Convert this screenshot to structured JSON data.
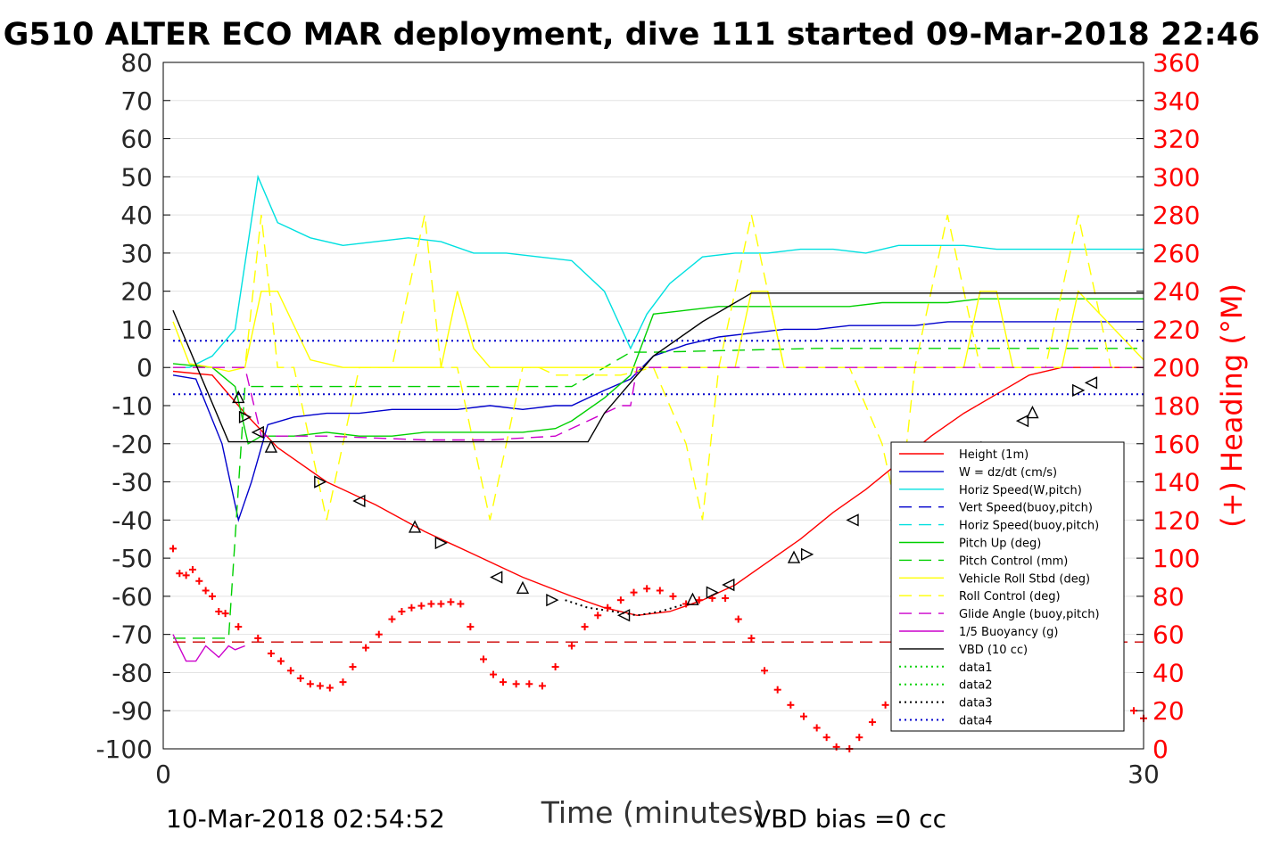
{
  "chart_data": {
    "type": "line",
    "title": "G510 ALTER ECO MAR deployment, dive 111 started 09-Mar-2018 22:46",
    "xlabel": "Time (minutes)",
    "ylabel_right": "(+) Heading (°M)",
    "footer_left": "10-Mar-2018 02:54:52",
    "footer_right": "VBD bias =0 cc",
    "xlim": [
      0,
      30
    ],
    "ylim": [
      -100,
      80
    ],
    "ylim_right": [
      0,
      360
    ],
    "x_ticks": [
      "0",
      "30"
    ],
    "y_ticks": [
      "80",
      "70",
      "60",
      "50",
      "40",
      "30",
      "20",
      "10",
      "0",
      "-10",
      "-20",
      "-30",
      "-40",
      "-50",
      "-60",
      "-70",
      "-80",
      "-90",
      "-100"
    ],
    "y_right_ticks": [
      "360",
      "340",
      "320",
      "300",
      "280",
      "260",
      "240",
      "220",
      "200",
      "180",
      "160",
      "140",
      "120",
      "100",
      "80",
      "60",
      "40",
      "20",
      "0"
    ],
    "grid": true,
    "legend_position": "lower-right",
    "colors": {
      "height": "#ff0000",
      "w": "#0000cc",
      "horiz": "#00e0e0",
      "pitch": "#00d000",
      "roll": "#ffff00",
      "glide": "#cc00cc",
      "vbd": "#000000",
      "heading": "#ff0000"
    },
    "legend": [
      {
        "label": "Height (1m)",
        "color": "#ff0000",
        "style": "solid"
      },
      {
        "label": "W = dz/dt (cm/s)",
        "color": "#0000cc",
        "style": "solid"
      },
      {
        "label": "Horiz Speed(W,pitch)",
        "color": "#00e0e0",
        "style": "solid"
      },
      {
        "label": "Vert Speed(buoy,pitch)",
        "color": "#0000cc",
        "style": "dash"
      },
      {
        "label": "Horiz Speed(buoy,pitch)",
        "color": "#00e0e0",
        "style": "dash"
      },
      {
        "label": "Pitch Up (deg)",
        "color": "#00d000",
        "style": "solid"
      },
      {
        "label": "Pitch Control (mm)",
        "color": "#00d000",
        "style": "dash"
      },
      {
        "label": "Vehicle Roll Stbd (deg)",
        "color": "#ffff00",
        "style": "solid"
      },
      {
        "label": "Roll Control (deg)",
        "color": "#ffff00",
        "style": "dash"
      },
      {
        "label": "Glide Angle (buoy,pitch)",
        "color": "#cc00cc",
        "style": "dash"
      },
      {
        "label": "1/5 Buoyancy (g)",
        "color": "#cc00cc",
        "style": "solid"
      },
      {
        "label": "VBD (10 cc)",
        "color": "#000000",
        "style": "solid"
      },
      {
        "label": "data1",
        "color": "#00d000",
        "style": "dot"
      },
      {
        "label": "data2",
        "color": "#00d000",
        "style": "dot"
      },
      {
        "label": "data3",
        "color": "#000000",
        "style": "dot"
      },
      {
        "label": "data4",
        "color": "#0000cc",
        "style": "dot"
      }
    ],
    "series": [
      {
        "name": "Height (1m)",
        "color": "#ff0000",
        "style": "solid",
        "x": [
          0.3,
          1.5,
          2.5,
          3.5,
          5,
          6.5,
          8,
          9.5,
          11,
          12.5,
          13.5,
          14.5,
          15.5,
          16.5,
          17.5,
          18.5,
          19.5,
          20.5,
          21.5,
          22.5,
          23.5,
          24.5,
          25.5,
          26.5,
          27.5,
          30
        ],
        "y": [
          -1,
          -2,
          -12,
          -21,
          -30,
          -36,
          -43,
          -49,
          -55,
          -60,
          -63,
          -65,
          -64,
          -61,
          -57,
          -51,
          -45,
          -38,
          -32,
          -25,
          -18,
          -12,
          -7,
          -2,
          0,
          0
        ]
      },
      {
        "name": "W = dz/dt (cm/s)",
        "color": "#0000cc",
        "style": "solid",
        "x": [
          0.3,
          1,
          1.8,
          2.3,
          2.7,
          3.2,
          4,
          5,
          6,
          7,
          8,
          9,
          10,
          11,
          12,
          12.5,
          13.5,
          14.3,
          15,
          16,
          17,
          18,
          19,
          20,
          21,
          22,
          23,
          24,
          25,
          26,
          27,
          30
        ],
        "y": [
          -2,
          -3,
          -20,
          -40,
          -30,
          -15,
          -13,
          -12,
          -12,
          -11,
          -11,
          -11,
          -10,
          -11,
          -10,
          -10,
          -6,
          -3,
          3,
          6,
          8,
          9,
          10,
          10,
          11,
          11,
          11,
          12,
          12,
          12,
          12,
          12
        ]
      },
      {
        "name": "Horiz Speed(W,pitch)",
        "color": "#00e0e0",
        "style": "solid",
        "x": [
          0.3,
          0.8,
          1.5,
          2.2,
          2.9,
          3.5,
          4.5,
          5.5,
          6.5,
          7.5,
          8.5,
          9.5,
          10.5,
          11.5,
          12.5,
          13.5,
          14.3,
          14.8,
          15.5,
          16.5,
          17.5,
          18.5,
          19.5,
          20.5,
          21.5,
          22.5,
          23.5,
          24.5,
          25.5,
          26.5,
          27.5,
          30
        ],
        "y": [
          0,
          0,
          3,
          10,
          50,
          38,
          34,
          32,
          33,
          34,
          33,
          30,
          30,
          29,
          28,
          20,
          5,
          14,
          22,
          29,
          30,
          30,
          31,
          31,
          30,
          32,
          32,
          32,
          31,
          31,
          31,
          31
        ]
      },
      {
        "name": "Pitch Up (deg)",
        "color": "#00d000",
        "style": "solid",
        "x": [
          0.3,
          1.5,
          2.2,
          2.6,
          3,
          4,
          5,
          6,
          7,
          8,
          9,
          10,
          11,
          12,
          12.5,
          13.5,
          14.3,
          15,
          16,
          17,
          18,
          19,
          20,
          21,
          22,
          23,
          24,
          25,
          26,
          27,
          30
        ],
        "y": [
          1,
          0,
          -5,
          -20,
          -18,
          -18,
          -17,
          -18,
          -18,
          -17,
          -17,
          -17,
          -17,
          -16,
          -14,
          -8,
          -2,
          14,
          15,
          16,
          16,
          16,
          16,
          16,
          17,
          17,
          17,
          18,
          18,
          18,
          18
        ]
      },
      {
        "name": "Pitch Control (mm)",
        "color": "#00d000",
        "style": "dash",
        "x": [
          0.3,
          2,
          2.5,
          5,
          8,
          10,
          12,
          12.5,
          14.3,
          15,
          20,
          25,
          30
        ],
        "y": [
          -71,
          -71,
          -5,
          -5,
          -5,
          -5,
          -5,
          -5,
          4,
          4,
          5,
          5,
          5
        ]
      },
      {
        "name": "Vehicle Roll Stbd (deg)",
        "color": "#ffff00",
        "style": "solid",
        "x": [
          0.3,
          0.8,
          1.5,
          2,
          2.5,
          3,
          3.5,
          4.5,
          5.5,
          6.5,
          7,
          7.5,
          8,
          8.5,
          9,
          9.5,
          10,
          10.5,
          11.5,
          12.5,
          13.5,
          14.5,
          15.5,
          16.5,
          17.5,
          18,
          18.5,
          19,
          19.5,
          20,
          20.5,
          21,
          21.5,
          22.5,
          23.5,
          24.5,
          25,
          25.5,
          26,
          26.5,
          27,
          27.5,
          28,
          30
        ],
        "y": [
          12,
          1,
          0,
          -1,
          0,
          20,
          20,
          2,
          0,
          0,
          0,
          0,
          0,
          0,
          20,
          5,
          0,
          0,
          0,
          0,
          0,
          0,
          0,
          0,
          0,
          20,
          20,
          0,
          0,
          0,
          0,
          0,
          0,
          0,
          0,
          0,
          20,
          20,
          0,
          0,
          0,
          0,
          20,
          2
        ]
      },
      {
        "name": "Roll Control (deg)",
        "color": "#ffff00",
        "style": "dash",
        "x": [
          0.3,
          2.5,
          3,
          3.5,
          4,
          5,
          6,
          6.5,
          7,
          8,
          8.5,
          9,
          10,
          11,
          11.5,
          12,
          13,
          14,
          15,
          16,
          16.5,
          17,
          18,
          19,
          20,
          21,
          22,
          22.5,
          23,
          24,
          25,
          26,
          27,
          28,
          29,
          30
        ],
        "y": [
          0,
          0,
          40,
          0,
          0,
          -40,
          0,
          0,
          0,
          40,
          0,
          0,
          -40,
          0,
          0,
          -2,
          -2,
          -2,
          0,
          -20,
          -40,
          0,
          40,
          0,
          0,
          0,
          -20,
          -40,
          0,
          40,
          0,
          0,
          0,
          40,
          0,
          0
        ]
      },
      {
        "name": "Glide Angle (buoy,pitch)",
        "color": "#cc00cc",
        "style": "dash",
        "x": [
          0.3,
          2.5,
          3,
          5,
          8,
          10,
          12,
          13,
          14,
          14.3,
          14.5,
          20,
          25,
          30
        ],
        "y": [
          0,
          0,
          -18,
          -18,
          -19,
          -19,
          -18,
          -14,
          -10,
          -10,
          0,
          0,
          0,
          0
        ]
      },
      {
        "name": "1/5 Buoyancy (g)",
        "color": "#cc00cc",
        "style": "solid",
        "x": [
          0.3,
          0.7,
          1,
          1.3,
          1.7,
          2,
          2.2,
          2.5
        ],
        "y": [
          -70,
          -77,
          -77,
          -73,
          -76,
          -73,
          -74,
          -73
        ]
      },
      {
        "name": "VBD (10 cc)",
        "color": "#000000",
        "style": "solid",
        "x": [
          0.3,
          2,
          5,
          8,
          11,
          12,
          13,
          13.5,
          15,
          16.5,
          18,
          20,
          22,
          24,
          26,
          28,
          30
        ],
        "y": [
          15,
          -19.5,
          -19.5,
          -19.5,
          -19.5,
          -19.5,
          -19.5,
          -12,
          3,
          12,
          19.5,
          19.5,
          19.5,
          19.5,
          19.5,
          19.5,
          19.5
        ]
      },
      {
        "name": "data3",
        "color": "#000000",
        "style": "dot",
        "x": [
          12.3,
          13,
          13.8,
          14.5,
          15.2,
          16
        ],
        "y": [
          -61,
          -63,
          -64,
          -65,
          -64,
          -62
        ]
      },
      {
        "name": "data4",
        "color": "#0000cc",
        "style": "dot",
        "x": [
          0.3,
          30
        ],
        "y": [
          7,
          7
        ]
      },
      {
        "name": "data4 lower",
        "color": "#0000cc",
        "style": "dot",
        "x": [
          0.3,
          30
        ],
        "y": [
          -7,
          -7
        ]
      },
      {
        "name": "baseline",
        "color": "#cc0000",
        "style": "dash",
        "x": [
          0.3,
          30
        ],
        "y": [
          -72,
          -72
        ]
      }
    ],
    "heading_points": [
      {
        "x": 0.3,
        "y": 105
      },
      {
        "x": 0.5,
        "y": 92
      },
      {
        "x": 0.7,
        "y": 91
      },
      {
        "x": 0.9,
        "y": 94
      },
      {
        "x": 1.1,
        "y": 88
      },
      {
        "x": 1.3,
        "y": 83
      },
      {
        "x": 1.5,
        "y": 80
      },
      {
        "x": 1.7,
        "y": 72
      },
      {
        "x": 1.9,
        "y": 71
      },
      {
        "x": 2.3,
        "y": 64
      },
      {
        "x": 2.9,
        "y": 58
      },
      {
        "x": 3.3,
        "y": 50
      },
      {
        "x": 3.6,
        "y": 46
      },
      {
        "x": 3.9,
        "y": 41
      },
      {
        "x": 4.2,
        "y": 37
      },
      {
        "x": 4.5,
        "y": 34
      },
      {
        "x": 4.8,
        "y": 33
      },
      {
        "x": 5.1,
        "y": 32
      },
      {
        "x": 5.5,
        "y": 35
      },
      {
        "x": 5.8,
        "y": 43
      },
      {
        "x": 6.2,
        "y": 53
      },
      {
        "x": 6.6,
        "y": 60
      },
      {
        "x": 7,
        "y": 68
      },
      {
        "x": 7.3,
        "y": 72
      },
      {
        "x": 7.6,
        "y": 74
      },
      {
        "x": 7.9,
        "y": 75
      },
      {
        "x": 8.2,
        "y": 76
      },
      {
        "x": 8.5,
        "y": 76
      },
      {
        "x": 8.8,
        "y": 77
      },
      {
        "x": 9.1,
        "y": 76
      },
      {
        "x": 9.4,
        "y": 64
      },
      {
        "x": 9.8,
        "y": 47
      },
      {
        "x": 10.1,
        "y": 39
      },
      {
        "x": 10.4,
        "y": 35
      },
      {
        "x": 10.8,
        "y": 34
      },
      {
        "x": 11.2,
        "y": 34
      },
      {
        "x": 11.6,
        "y": 33
      },
      {
        "x": 12,
        "y": 43
      },
      {
        "x": 12.5,
        "y": 54
      },
      {
        "x": 12.9,
        "y": 64
      },
      {
        "x": 13.3,
        "y": 70
      },
      {
        "x": 13.6,
        "y": 74
      },
      {
        "x": 14,
        "y": 78
      },
      {
        "x": 14.4,
        "y": 82
      },
      {
        "x": 14.8,
        "y": 84
      },
      {
        "x": 15.2,
        "y": 83
      },
      {
        "x": 15.6,
        "y": 80
      },
      {
        "x": 16,
        "y": 76
      },
      {
        "x": 16.4,
        "y": 78
      },
      {
        "x": 16.8,
        "y": 79
      },
      {
        "x": 17.2,
        "y": 79
      },
      {
        "x": 17.6,
        "y": 68
      },
      {
        "x": 18,
        "y": 58
      },
      {
        "x": 18.4,
        "y": 41
      },
      {
        "x": 18.8,
        "y": 31
      },
      {
        "x": 19.2,
        "y": 23
      },
      {
        "x": 19.6,
        "y": 17
      },
      {
        "x": 20,
        "y": 11
      },
      {
        "x": 20.3,
        "y": 6
      },
      {
        "x": 20.6,
        "y": 1
      },
      {
        "x": 21,
        "y": 0
      },
      {
        "x": 21.3,
        "y": 6
      },
      {
        "x": 21.7,
        "y": 14
      },
      {
        "x": 22.1,
        "y": 23
      },
      {
        "x": 22.5,
        "y": 33
      },
      {
        "x": 22.9,
        "y": 43
      },
      {
        "x": 23.3,
        "y": 52
      },
      {
        "x": 23.7,
        "y": 62
      },
      {
        "x": 24.1,
        "y": 71
      },
      {
        "x": 24.5,
        "y": 76
      },
      {
        "x": 24.9,
        "y": 79
      },
      {
        "x": 25.3,
        "y": 79
      },
      {
        "x": 25.7,
        "y": 76
      },
      {
        "x": 26.1,
        "y": 73
      },
      {
        "x": 26.5,
        "y": 70
      },
      {
        "x": 26.9,
        "y": 60
      },
      {
        "x": 27.3,
        "y": 50
      },
      {
        "x": 27.7,
        "y": 42
      },
      {
        "x": 28.1,
        "y": 36
      },
      {
        "x": 28.5,
        "y": 32
      },
      {
        "x": 28.9,
        "y": 30
      },
      {
        "x": 29.3,
        "y": 24
      },
      {
        "x": 29.7,
        "y": 20
      },
      {
        "x": 30,
        "y": 16
      }
    ],
    "event_markers": [
      {
        "x": 2.3,
        "y": -8
      },
      {
        "x": 2.5,
        "y": -13
      },
      {
        "x": 2.9,
        "y": -17
      },
      {
        "x": 3.3,
        "y": -21
      },
      {
        "x": 4.8,
        "y": -30
      },
      {
        "x": 6,
        "y": -35
      },
      {
        "x": 7.7,
        "y": -42
      },
      {
        "x": 8.5,
        "y": -46
      },
      {
        "x": 10.2,
        "y": -55
      },
      {
        "x": 11,
        "y": -58
      },
      {
        "x": 11.9,
        "y": -61
      },
      {
        "x": 14.1,
        "y": -65
      },
      {
        "x": 16.2,
        "y": -61
      },
      {
        "x": 16.8,
        "y": -59
      },
      {
        "x": 17.3,
        "y": -57
      },
      {
        "x": 19.3,
        "y": -50
      },
      {
        "x": 19.7,
        "y": -49
      },
      {
        "x": 21.1,
        "y": -40
      },
      {
        "x": 22.7,
        "y": -33
      },
      {
        "x": 23.1,
        "y": -31
      },
      {
        "x": 23.5,
        "y": -29
      },
      {
        "x": 24.8,
        "y": -23
      },
      {
        "x": 25.2,
        "y": -21
      },
      {
        "x": 26.3,
        "y": -14
      },
      {
        "x": 26.6,
        "y": -12
      },
      {
        "x": 28,
        "y": -6
      },
      {
        "x": 28.4,
        "y": -4
      }
    ]
  }
}
